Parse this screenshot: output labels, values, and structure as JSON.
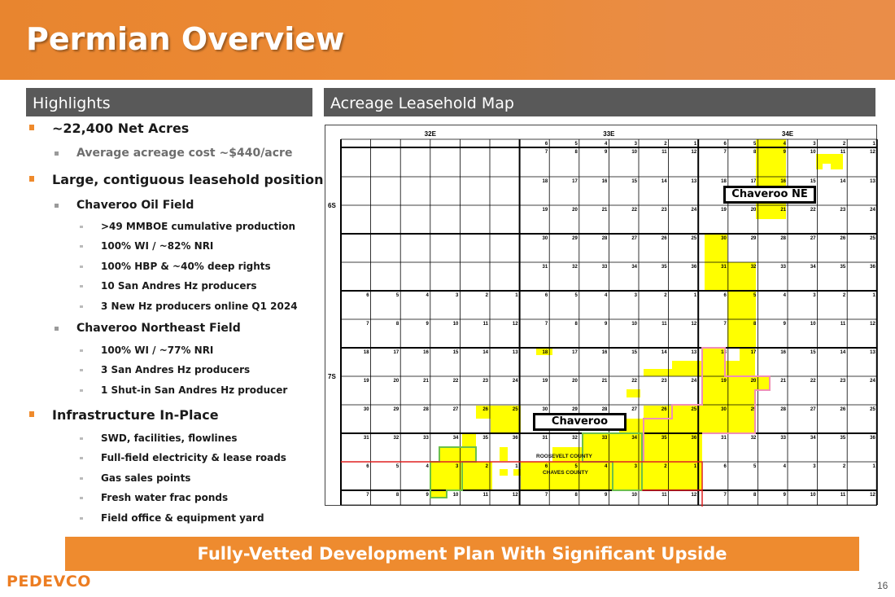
{
  "header": {
    "title": "Permian Overview"
  },
  "left": {
    "heading": "Highlights",
    "items": [
      {
        "level": 1,
        "text": "~22,400 Net Acres"
      },
      {
        "level": 2,
        "text": "Average acreage cost ~$440/acre",
        "gray": true
      },
      {
        "level": 1,
        "text": "Large, contiguous leasehold position"
      },
      {
        "level": 2,
        "text": "Chaveroo Oil Field"
      },
      {
        "level": 3,
        "text": ">49 MMBOE cumulative production"
      },
      {
        "level": 3,
        "text": "100% WI / ~82% NRI"
      },
      {
        "level": 3,
        "text": "100% HBP & ~40% deep rights"
      },
      {
        "level": 3,
        "text": "10 San Andres Hz producers"
      },
      {
        "level": 3,
        "text": "3 New Hz producers online Q1 2024"
      },
      {
        "level": 2,
        "text": "Chaveroo Northeast Field"
      },
      {
        "level": 3,
        "text": "100% WI / ~77% NRI"
      },
      {
        "level": 3,
        "text": "3 San Andres Hz producers"
      },
      {
        "level": 3,
        "text": "1 Shut-in San Andres Hz producer"
      },
      {
        "level": 1,
        "text": "Infrastructure In-Place"
      },
      {
        "level": 3,
        "text": "SWD, facilities, flowlines"
      },
      {
        "level": 3,
        "text": "Full-field electricity & lease roads"
      },
      {
        "level": 3,
        "text": "Gas sales points"
      },
      {
        "level": 3,
        "text": "Fresh water frac ponds"
      },
      {
        "level": 3,
        "text": "Field office & equipment yard"
      }
    ]
  },
  "map": {
    "heading": "Acreage Leasehold Map",
    "ranges": [
      "32E",
      "33E",
      "34E"
    ],
    "townships": [
      "6S",
      "7S"
    ],
    "section_rows": [
      [
        "",
        "",
        "",
        "",
        "",
        "",
        "6",
        "5",
        "4",
        "3",
        "2",
        "1",
        "6",
        "5",
        "4",
        "3",
        "2",
        "1"
      ],
      [
        "",
        "",
        "",
        "",
        "",
        "",
        "7",
        "8",
        "9",
        "10",
        "11",
        "12",
        "7",
        "8",
        "9",
        "10",
        "11",
        "12"
      ],
      [
        "",
        "",
        "",
        "",
        "",
        "",
        "18",
        "17",
        "16",
        "15",
        "14",
        "13",
        "18",
        "17",
        "16",
        "15",
        "14",
        "13"
      ],
      [
        "",
        "",
        "",
        "",
        "",
        "",
        "19",
        "20",
        "21",
        "22",
        "23",
        "24",
        "19",
        "20",
        "21",
        "22",
        "23",
        "24"
      ],
      [
        "",
        "",
        "",
        "",
        "",
        "",
        "30",
        "29",
        "28",
        "27",
        "26",
        "25",
        "30",
        "29",
        "28",
        "27",
        "26",
        "25"
      ],
      [
        "",
        "",
        "",
        "",
        "",
        "",
        "31",
        "32",
        "33",
        "34",
        "35",
        "36",
        "31",
        "32",
        "33",
        "34",
        "35",
        "36"
      ],
      [
        "6",
        "5",
        "4",
        "3",
        "2",
        "1",
        "6",
        "5",
        "4",
        "3",
        "2",
        "1",
        "6",
        "5",
        "4",
        "3",
        "2",
        "1"
      ],
      [
        "7",
        "8",
        "9",
        "10",
        "11",
        "12",
        "7",
        "8",
        "9",
        "10",
        "11",
        "12",
        "7",
        "8",
        "9",
        "10",
        "11",
        "12"
      ],
      [
        "18",
        "17",
        "16",
        "15",
        "14",
        "13",
        "18",
        "17",
        "16",
        "15",
        "14",
        "13",
        "18",
        "17",
        "16",
        "15",
        "14",
        "13"
      ],
      [
        "19",
        "20",
        "21",
        "22",
        "23",
        "24",
        "19",
        "20",
        "21",
        "22",
        "23",
        "24",
        "19",
        "20",
        "21",
        "22",
        "23",
        "24"
      ],
      [
        "30",
        "29",
        "28",
        "27",
        "26",
        "25",
        "30",
        "29",
        "28",
        "27",
        "26",
        "25",
        "30",
        "29",
        "28",
        "27",
        "26",
        "25"
      ],
      [
        "31",
        "32",
        "33",
        "34",
        "35",
        "36",
        "31",
        "32",
        "33",
        "34",
        "35",
        "36",
        "31",
        "32",
        "33",
        "34",
        "35",
        "36"
      ],
      [
        "6",
        "5",
        "4",
        "3",
        "2",
        "1",
        "6",
        "5",
        "4",
        "3",
        "2",
        "1",
        "6",
        "5",
        "4",
        "3",
        "2",
        "1"
      ],
      [
        "7",
        "8",
        "9",
        "10",
        "11",
        "12",
        "7",
        "8",
        "9",
        "10",
        "11",
        "12",
        "7",
        "8",
        "9",
        "10",
        "11",
        "12"
      ]
    ],
    "labels": {
      "chaveroo_ne": "Chaveroo NE",
      "chaveroo": "Chaveroo",
      "roosevelt": "ROOSEVELT COUNTY",
      "chaves": "CHAVES COUNTY"
    },
    "colors": {
      "acreage": "#ffff00",
      "green_outline": "#6cc04a",
      "pink_outline": "#ef8fb5",
      "county_line": "#e02020"
    }
  },
  "banner": "Fully-Vetted Development Plan With Significant Upside",
  "footer": {
    "logo": "PEDEVCO",
    "page": "16"
  }
}
